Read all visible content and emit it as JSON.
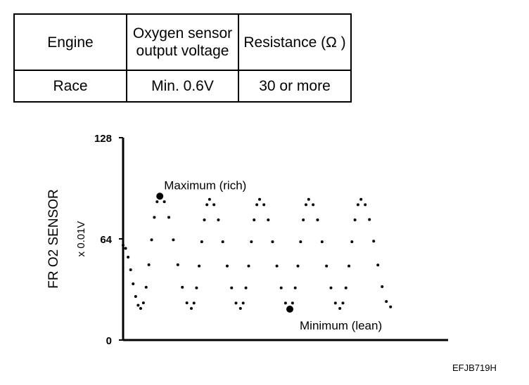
{
  "table": {
    "headers": [
      "Engine",
      [
        "Oxygen sensor",
        "output voltage"
      ],
      "Resistance (Ω )"
    ],
    "rows": [
      [
        "Race",
        "Min.  0.6V",
        "30 or more"
      ]
    ]
  },
  "chart_data": {
    "type": "line",
    "style": "dotted",
    "ylabel": "FR O2 SENSOR",
    "yunit": "x 0.01V",
    "ylim": [
      0,
      128
    ],
    "yticks": [
      "0",
      "64",
      "128"
    ],
    "xlim": [
      0,
      100
    ],
    "xlabel": "",
    "points": [
      [
        0,
        60
      ],
      [
        5.4,
        20
      ],
      [
        11.3,
        91
      ],
      [
        21.0,
        20
      ],
      [
        26.6,
        89
      ],
      [
        36.1,
        20
      ],
      [
        42.0,
        89
      ],
      [
        51.3,
        20
      ],
      [
        57.1,
        89
      ],
      [
        66.7,
        20
      ],
      [
        73.2,
        89
      ],
      [
        82.3,
        21
      ]
    ],
    "annotations": [
      {
        "text": "Maximum (rich)",
        "x": 11.3,
        "y": 91
      },
      {
        "text": "Minimum (lean)",
        "x": 51.3,
        "y": 20
      }
    ]
  },
  "figure_code": "EFJB719H"
}
